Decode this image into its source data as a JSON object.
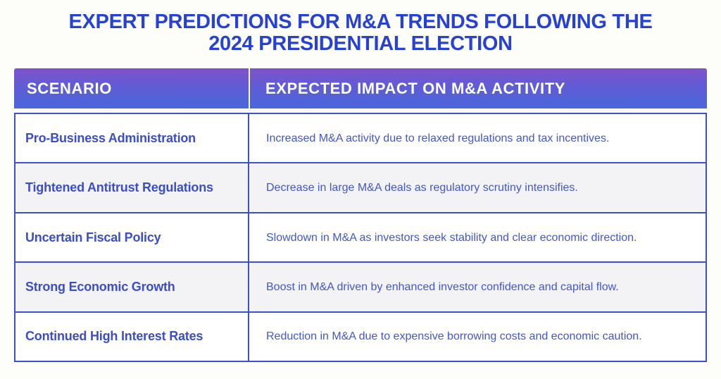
{
  "title": {
    "line1": "EXPERT PREDICTIONS FOR M&A TRENDS FOLLOWING THE",
    "line2": "2024 PRESIDENTIAL ELECTION"
  },
  "chart_data": {
    "type": "table",
    "title": "EXPERT PREDICTIONS FOR M&A TRENDS FOLLOWING THE 2024 PRESIDENTIAL ELECTION",
    "columns": [
      "SCENARIO",
      "EXPECTED IMPACT ON M&A ACTIVITY"
    ],
    "rows": [
      [
        "Pro-Business Administration",
        "Increased M&A activity due to relaxed regulations and tax incentives."
      ],
      [
        "Tightened Antitrust Regulations",
        "Decrease in large M&A deals as regulatory scrutiny intensifies."
      ],
      [
        "Uncertain Fiscal Policy",
        "Slowdown in M&A as investors seek stability and clear economic direction."
      ],
      [
        "Strong Economic Growth",
        "Boost in M&A driven by enhanced investor confidence and capital flow."
      ],
      [
        "Continued High Interest Rates",
        "Reduction in M&A due to expensive borrowing costs and economic caution."
      ]
    ]
  },
  "colors": {
    "title_text": "#2742d3",
    "header_gradient_top": "#8052cc",
    "header_gradient_bottom": "#4a67dc",
    "header_text": "#ffffff",
    "scenario_text": "#3c4ec6",
    "impact_text": "#4457c8",
    "table_border": "#3b4fd1",
    "row_alt_bg": "#f3f3f6",
    "page_bg": "#fdfdfa"
  }
}
